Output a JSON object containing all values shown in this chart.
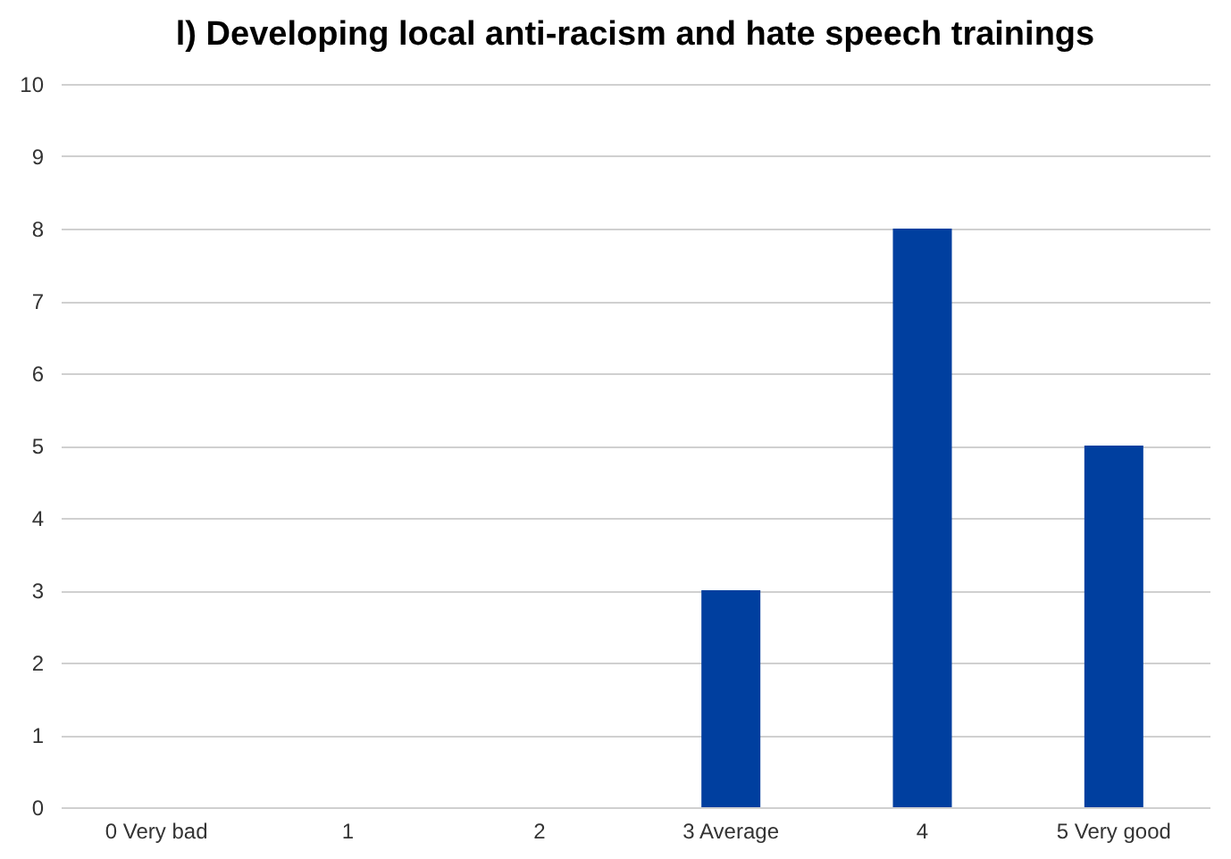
{
  "chart_data": {
    "type": "bar",
    "title": "l) Developing local anti-racism and hate speech trainings",
    "categories": [
      "0 Very bad",
      "1",
      "2",
      "3 Average",
      "4",
      "5 Very good"
    ],
    "values": [
      0,
      0,
      0,
      3,
      8,
      5
    ],
    "color": "#003f9f",
    "ylim": [
      0,
      10
    ],
    "yticks": [
      0,
      1,
      2,
      3,
      4,
      5,
      6,
      7,
      8,
      9,
      10
    ],
    "grid": "y"
  }
}
